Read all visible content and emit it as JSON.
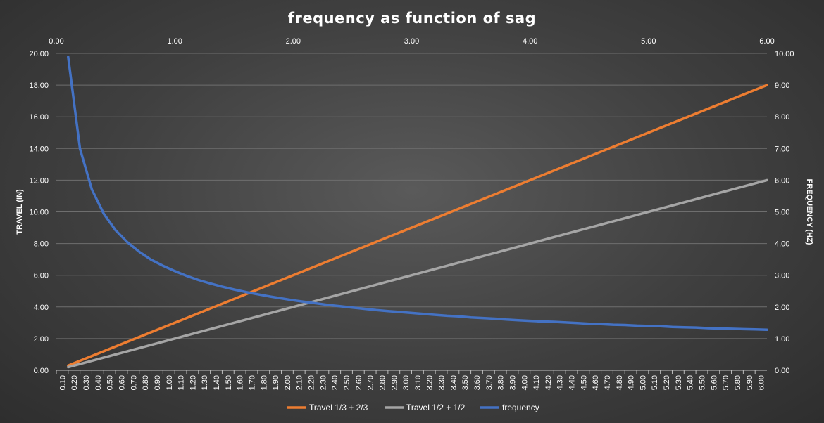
{
  "chart_data": {
    "type": "line",
    "title": "frequency as function of sag",
    "ylabel": "TRAVEL (IN)",
    "y2label": "FREQUENCY (HZ)",
    "xlabel": "",
    "ylim": [
      0,
      20
    ],
    "y2lim": [
      0,
      10
    ],
    "xlim_secondary": [
      0,
      6
    ],
    "y_ticks": [
      "0.00",
      "2.00",
      "4.00",
      "6.00",
      "8.00",
      "10.00",
      "12.00",
      "14.00",
      "16.00",
      "18.00",
      "20.00"
    ],
    "y2_ticks": [
      "0.00",
      "1.00",
      "2.00",
      "3.00",
      "4.00",
      "5.00",
      "6.00",
      "7.00",
      "8.00",
      "9.00",
      "10.00"
    ],
    "x2_ticks": [
      "0.00",
      "1.00",
      "2.00",
      "3.00",
      "4.00",
      "5.00",
      "6.00"
    ],
    "x_ticks": [
      "0.10",
      "0.20",
      "0.30",
      "0.40",
      "0.50",
      "0.60",
      "0.70",
      "0.80",
      "0.90",
      "1.00",
      "1.10",
      "1.20",
      "1.30",
      "1.40",
      "1.50",
      "1.60",
      "1.70",
      "1.80",
      "1.90",
      "2.00",
      "2.10",
      "2.20",
      "2.30",
      "2.40",
      "2.50",
      "2.60",
      "2.70",
      "2.80",
      "2.90",
      "3.00",
      "3.10",
      "3.20",
      "3.30",
      "3.40",
      "3.50",
      "3.60",
      "3.70",
      "3.80",
      "3.90",
      "4.00",
      "4.10",
      "4.20",
      "4.30",
      "4.40",
      "4.50",
      "4.60",
      "4.70",
      "4.80",
      "4.90",
      "5.00",
      "5.10",
      "5.20",
      "5.30",
      "5.40",
      "5.50",
      "5.60",
      "5.70",
      "5.80",
      "5.90",
      "6.00"
    ],
    "grid": true,
    "legend_position": "bottom",
    "series": [
      {
        "name": "Travel 1/3 + 2/3",
        "axis": "left",
        "color": "#ED7D31",
        "x_from": 0.1,
        "x_to": 6.0,
        "y_from": 0.3,
        "y_to": 18.0
      },
      {
        "name": "Travel 1/2 + 1/2",
        "axis": "left",
        "color": "#A5A5A5",
        "x_from": 0.1,
        "x_to": 6.0,
        "y_from": 0.2,
        "y_to": 12.0
      },
      {
        "name": "frequency",
        "axis": "right",
        "color": "#4472C4",
        "x": [
          0.1,
          0.2,
          0.3,
          0.4,
          0.5,
          0.6,
          0.7,
          0.8,
          0.9,
          1.0,
          1.1,
          1.2,
          1.3,
          1.4,
          1.5,
          1.6,
          1.7,
          1.8,
          1.9,
          2.0,
          2.1,
          2.2,
          2.3,
          2.4,
          2.5,
          2.6,
          2.7,
          2.8,
          2.9,
          3.0,
          3.1,
          3.2,
          3.3,
          3.4,
          3.5,
          3.6,
          3.7,
          3.8,
          3.9,
          4.0,
          4.1,
          4.2,
          4.3,
          4.4,
          4.5,
          4.6,
          4.7,
          4.8,
          4.9,
          5.0,
          5.1,
          5.2,
          5.3,
          5.4,
          5.5,
          5.6,
          5.7,
          5.8,
          5.9,
          6.0
        ],
        "values": [
          9.89,
          6.99,
          5.71,
          4.94,
          4.42,
          4.04,
          3.74,
          3.49,
          3.3,
          3.13,
          2.98,
          2.85,
          2.74,
          2.64,
          2.55,
          2.47,
          2.4,
          2.33,
          2.27,
          2.21,
          2.16,
          2.11,
          2.06,
          2.02,
          1.98,
          1.94,
          1.9,
          1.87,
          1.84,
          1.81,
          1.78,
          1.75,
          1.72,
          1.7,
          1.67,
          1.65,
          1.63,
          1.6,
          1.58,
          1.56,
          1.54,
          1.53,
          1.51,
          1.49,
          1.47,
          1.46,
          1.44,
          1.43,
          1.41,
          1.4,
          1.39,
          1.37,
          1.36,
          1.35,
          1.33,
          1.32,
          1.31,
          1.3,
          1.29,
          1.28
        ]
      }
    ]
  }
}
